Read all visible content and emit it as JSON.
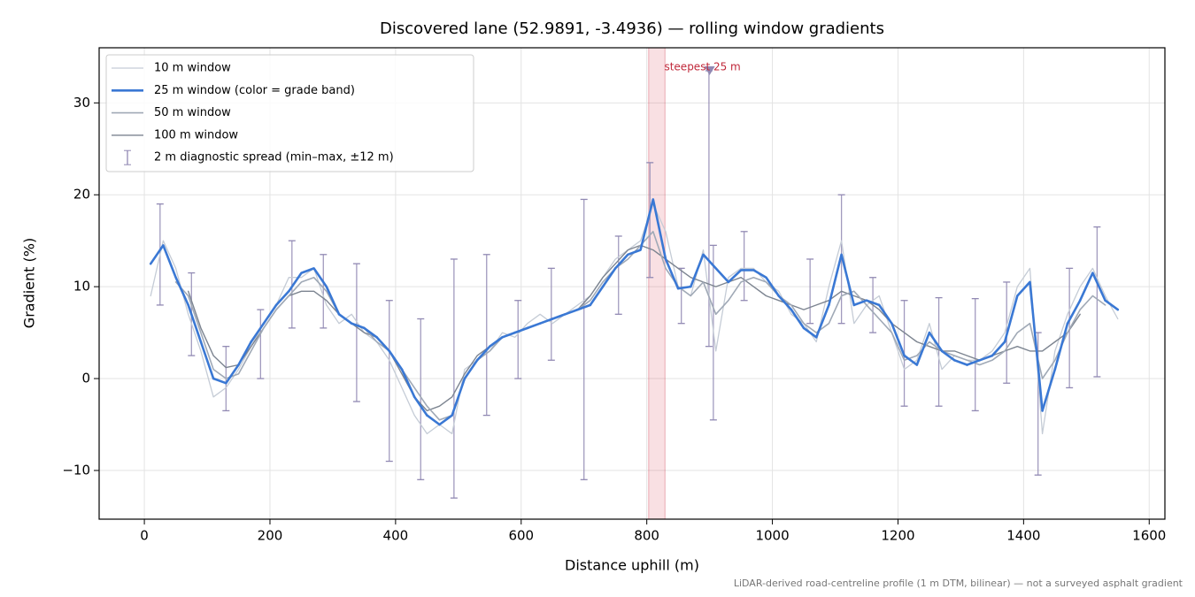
{
  "chart_data": {
    "type": "line",
    "title": "Discovered lane (52.9891, -3.4936) — rolling window gradients",
    "xlabel": "Distance uphill (m)",
    "ylabel": "Gradient (%)",
    "footnote": "LiDAR-derived road-centreline profile (1 m DTM, bilinear) — not a surveyed asphalt gradient",
    "xlim": [
      -72,
      1625
    ],
    "ylim": [
      -15.3,
      36
    ],
    "xticks": [
      0,
      200,
      400,
      600,
      800,
      1000,
      1200,
      1400,
      1600
    ],
    "yticks": [
      {
        "value": -10,
        "label": "−10"
      },
      0,
      10,
      20,
      30
    ],
    "grid": true,
    "legend": "upper left",
    "x": [
      10,
      30,
      50,
      70,
      90,
      110,
      130,
      150,
      170,
      190,
      210,
      230,
      250,
      270,
      290,
      310,
      330,
      350,
      370,
      390,
      410,
      430,
      450,
      470,
      490,
      510,
      530,
      550,
      570,
      590,
      610,
      630,
      650,
      670,
      690,
      710,
      730,
      750,
      770,
      790,
      810,
      830,
      850,
      870,
      890,
      910,
      930,
      950,
      970,
      990,
      1010,
      1030,
      1050,
      1070,
      1090,
      1110,
      1130,
      1150,
      1170,
      1190,
      1210,
      1230,
      1250,
      1270,
      1290,
      1310,
      1330,
      1350,
      1370,
      1390,
      1410,
      1430,
      1450,
      1470,
      1490,
      1510,
      1530,
      1550
    ],
    "series": [
      {
        "name": "10 m window",
        "color": "#c5ccd6",
        "width": 1.3,
        "values": [
          9,
          15,
          12,
          7,
          3,
          -2,
          -1,
          1,
          3.5,
          6,
          8,
          11,
          11,
          12,
          8,
          6,
          7,
          5,
          4,
          2,
          -1,
          -4,
          -6,
          -5,
          -6,
          1,
          2,
          3,
          5,
          4.5,
          6,
          7,
          6,
          7,
          8,
          9,
          11,
          13,
          14,
          15,
          19,
          16,
          10,
          9,
          14,
          3,
          11,
          12,
          12,
          10.5,
          9.5,
          7,
          6,
          4,
          10,
          15,
          6,
          8,
          9,
          5,
          1,
          2,
          6,
          1,
          2.5,
          2,
          2,
          3,
          5,
          10,
          12,
          -6,
          3,
          7,
          10,
          12,
          9,
          6.5
        ]
      },
      {
        "name": "25 m window (color = grade band)",
        "color": "#3a78d4",
        "width": 2.6,
        "values": [
          12.5,
          14.5,
          11,
          8,
          4,
          0,
          -0.5,
          1.5,
          4,
          6,
          8,
          9.5,
          11.5,
          12,
          10,
          7,
          6,
          5.5,
          4.5,
          3,
          1,
          -2,
          -4,
          -5,
          -4,
          0,
          2,
          3.5,
          4.5,
          5,
          5.5,
          6,
          6.5,
          7,
          7.5,
          8,
          10,
          12,
          13.5,
          14,
          19.5,
          13,
          9.8,
          10,
          13.5,
          12,
          10.5,
          11.8,
          11.8,
          11,
          9,
          7.5,
          5.5,
          4.5,
          8,
          13.5,
          8,
          8.5,
          8,
          6,
          2.5,
          1.5,
          5,
          3,
          2,
          1.5,
          2,
          2.5,
          4,
          9,
          10.5,
          -3.5,
          1,
          6,
          8.5,
          11.5,
          8.5,
          7.5
        ],
        "colors": [
          "#3a78d4",
          "#3a78d4",
          "#3a78d4",
          "#9aa5b4",
          "#9aa5b4",
          "#9aa5b4",
          "#9aa5b4",
          "#9aa5b4",
          "#9aa5b4",
          "#9aa5b4",
          "#9aa5b4",
          "#9aa5b4",
          "#3a78d4",
          "#3a78d4",
          "#3a78d4",
          "#9aa5b4",
          "#9aa5b4",
          "#9aa5b4",
          "#9aa5b4",
          "#9aa5b4",
          "#9aa5b4",
          "#9aa5b4",
          "#9aa5b4",
          "#9aa5b4",
          "#9aa5b4",
          "#9aa5b4",
          "#9aa5b4",
          "#9aa5b4",
          "#9aa5b4",
          "#9aa5b4",
          "#9aa5b4",
          "#9aa5b4",
          "#9aa5b4",
          "#9aa5b4",
          "#9aa5b4",
          "#9aa5b4",
          "#9aa5b4",
          "#9aa5b4",
          "#3a78d4",
          "#3a78d4",
          "#3a78d4",
          "#3a78d4",
          "#9aa5b4",
          "#9aa5b4",
          "#3a78d4",
          "#3a78d4",
          "#9aa5b4",
          "#3a78d4",
          "#3a78d4",
          "#3a78d4",
          "#9aa5b4",
          "#9aa5b4",
          "#9aa5b4",
          "#9aa5b4",
          "#9aa5b4",
          "#3a78d4",
          "#9aa5b4",
          "#9aa5b4",
          "#9aa5b4",
          "#9aa5b4",
          "#9aa5b4",
          "#9aa5b4",
          "#9aa5b4",
          "#9aa5b4",
          "#9aa5b4",
          "#9aa5b4",
          "#9aa5b4",
          "#9aa5b4",
          "#9aa5b4",
          "#3a78d4",
          "#3a78d4",
          "#9aa5b4",
          "#9aa5b4",
          "#9aa5b4",
          "#9aa5b4",
          "#3a78d4",
          "#9aa5b4",
          "#9aa5b4"
        ]
      },
      {
        "name": "50 m window",
        "color": "#a0a9b6",
        "width": 1.6,
        "values": [
          null,
          null,
          10.5,
          9,
          5,
          1,
          0,
          0.5,
          3,
          5.5,
          7.5,
          9,
          10.5,
          11,
          9.5,
          7,
          6,
          5.5,
          4,
          3,
          1,
          -1,
          -3,
          -4.5,
          -4,
          0,
          2,
          3,
          4.5,
          5,
          5.5,
          6,
          6.5,
          7,
          7.5,
          8.5,
          10.5,
          12,
          13,
          14.5,
          16,
          12,
          10,
          9,
          10.5,
          7,
          8.5,
          10.5,
          11,
          10.5,
          9,
          8,
          6,
          5,
          6,
          9,
          9.5,
          8,
          6.5,
          5,
          2,
          2.5,
          4,
          3,
          2.5,
          2,
          1.5,
          2,
          3,
          5,
          6,
          0,
          2,
          5,
          7.5,
          9,
          8,
          null
        ]
      },
      {
        "name": "100 m window",
        "color": "#7c8490",
        "width": 1.4,
        "values": [
          null,
          null,
          null,
          9.5,
          5.5,
          2.5,
          1.2,
          1.5,
          3.5,
          5.5,
          7.5,
          9,
          9.5,
          9.5,
          8.5,
          7,
          6,
          5,
          4.5,
          3,
          0.5,
          -2,
          -3.5,
          -3,
          -2,
          0.5,
          2.5,
          3.5,
          4.5,
          5,
          5.5,
          6,
          6.5,
          7,
          7.5,
          9,
          11,
          12.5,
          14,
          14.5,
          14,
          13,
          12,
          11,
          10.5,
          10,
          10.5,
          11,
          10,
          9,
          8.5,
          8,
          7.5,
          8,
          8.5,
          9.5,
          9,
          8.5,
          7.5,
          6,
          5,
          4,
          3.5,
          3,
          3,
          2.5,
          2,
          2.5,
          3,
          3.5,
          3,
          3,
          4,
          5,
          7,
          null,
          null,
          null
        ]
      }
    ],
    "spread": {
      "name": "2 m diagnostic spread (min–max, ±12 m)",
      "color": "#9189b3",
      "x": [
        25,
        75,
        130,
        185,
        235,
        285,
        338,
        390,
        440,
        493,
        545,
        595,
        648,
        700,
        755,
        805,
        855,
        899,
        906,
        955,
        1060,
        1110,
        1160,
        1210,
        1265,
        1323,
        1373,
        1423,
        1473,
        1517
      ],
      "low": [
        8,
        2.5,
        -3.5,
        0,
        5.5,
        5.5,
        -2.5,
        -9,
        -11,
        -13,
        -4,
        0,
        2,
        -11,
        7,
        11,
        6,
        3.5,
        -4.5,
        8.5,
        6,
        6,
        5,
        -3,
        -3,
        -3.5,
        -0.5,
        -10.5,
        -1,
        0.2
      ],
      "high": [
        19,
        11.5,
        3.5,
        7.5,
        15,
        13.5,
        12.5,
        8.5,
        6.5,
        13,
        13.5,
        8.5,
        12,
        19.5,
        15.5,
        23.5,
        12,
        33.5,
        14.5,
        16,
        13,
        20,
        11,
        8.5,
        8.8,
        8.7,
        10.5,
        5,
        12,
        16.5
      ]
    },
    "steepest_span": [
      803,
      829
    ],
    "annotation": {
      "text": "steepest 25 m",
      "x": 900,
      "y": 33.5,
      "color": "#c0283a"
    }
  }
}
